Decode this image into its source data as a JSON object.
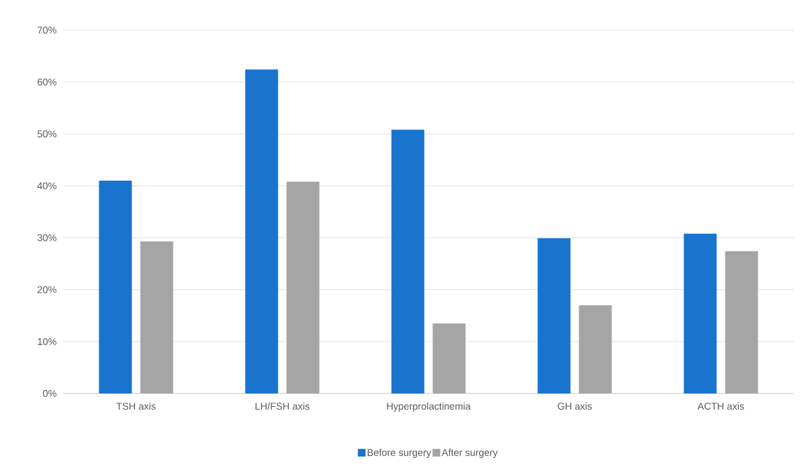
{
  "chart_data": {
    "type": "bar",
    "categories": [
      "TSH axis",
      "LH/FSH axis",
      "Hyperprolactinemia",
      "GH axis",
      "ACTH axis"
    ],
    "series": [
      {
        "name": "Before surgery",
        "color": "#1874cd",
        "values": [
          41.0,
          62.4,
          50.8,
          29.9,
          30.8
        ]
      },
      {
        "name": "After surgery",
        "color": "#a5a5a5",
        "values": [
          29.3,
          40.8,
          13.5,
          17.0,
          27.4
        ]
      }
    ],
    "ylim": [
      0,
      70
    ],
    "yticks": [
      {
        "value": 0,
        "label": "0%"
      },
      {
        "value": 10,
        "label": "10%"
      },
      {
        "value": 20,
        "label": "20%"
      },
      {
        "value": 30,
        "label": "30%"
      },
      {
        "value": 40,
        "label": "40%"
      },
      {
        "value": 50,
        "label": "50%"
      },
      {
        "value": 60,
        "label": "60%"
      },
      {
        "value": 70,
        "label": "70%"
      }
    ],
    "grid": "y",
    "legend": "bottom"
  }
}
